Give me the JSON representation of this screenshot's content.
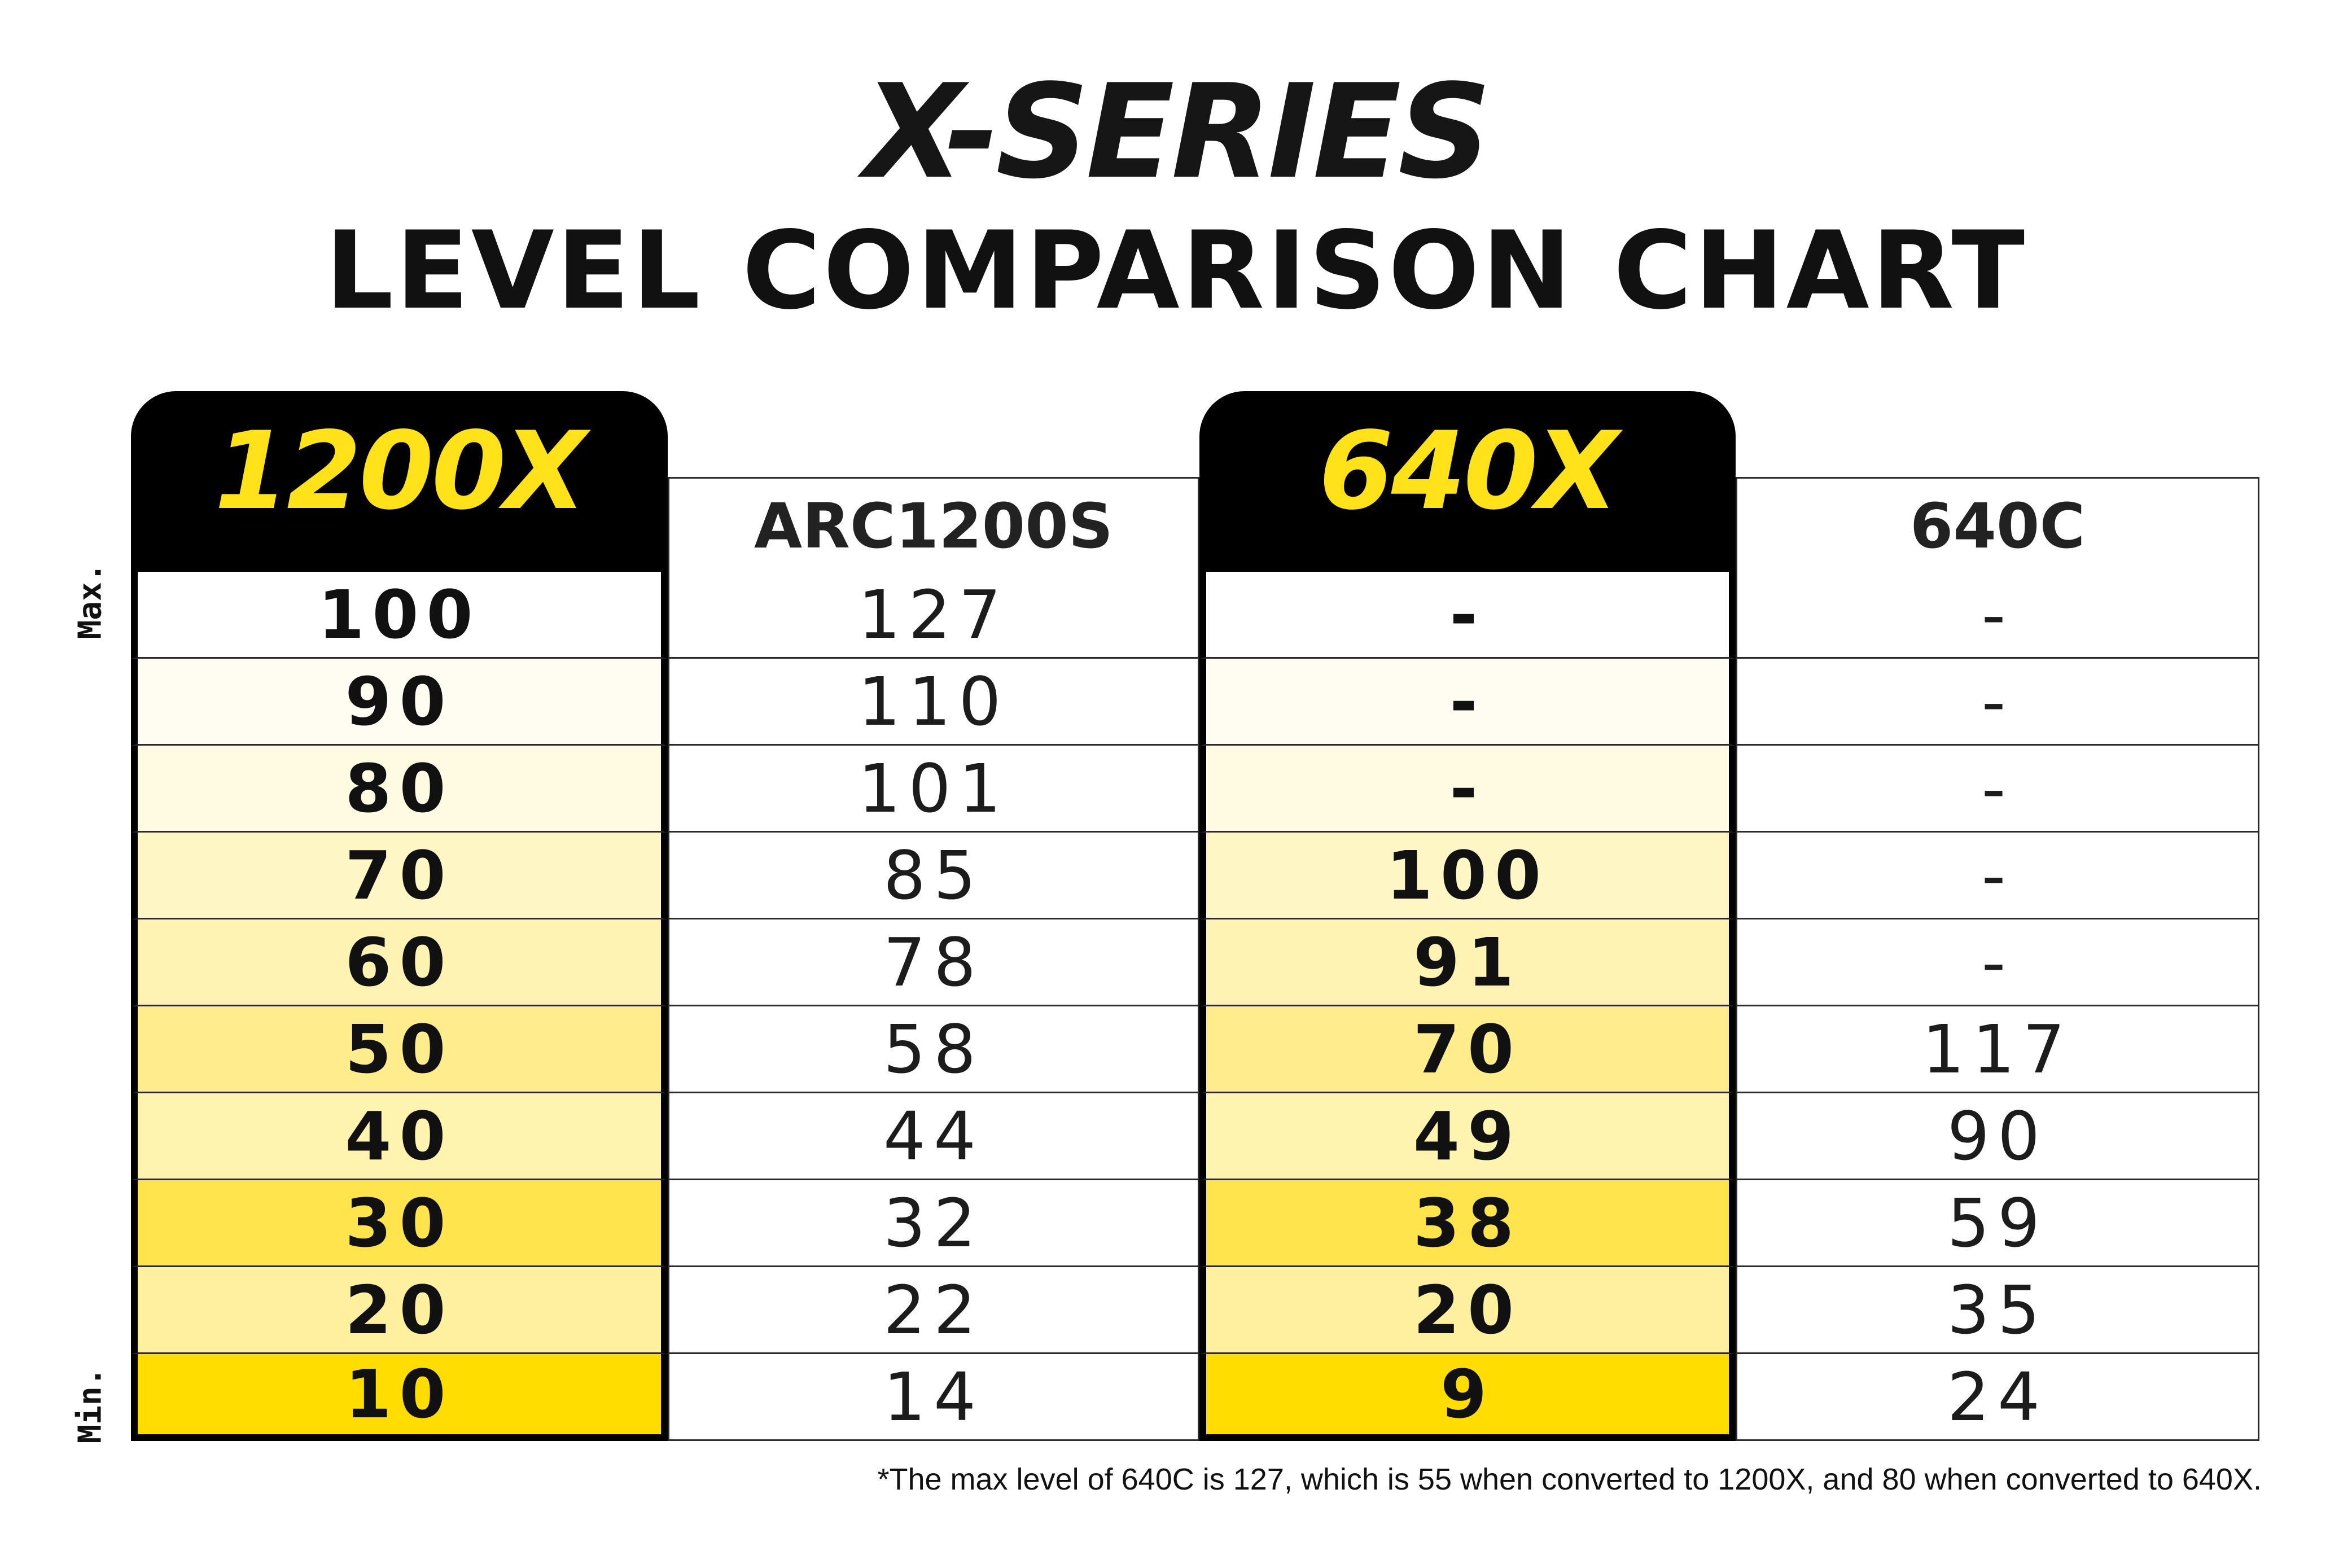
{
  "chart_data": {
    "type": "table",
    "brand": "X-SERIES",
    "title": "LEVEL COMPARISON CHART",
    "side_labels": {
      "max": "Max.",
      "min": "Min."
    },
    "columns": [
      {
        "name": "1200X",
        "highlight": true,
        "values": [
          "100",
          "90",
          "80",
          "70",
          "60",
          "50",
          "40",
          "30",
          "20",
          "10"
        ]
      },
      {
        "name": "ARC1200S",
        "highlight": false,
        "values": [
          "127",
          "110",
          "101",
          "85",
          "78",
          "58",
          "44",
          "32",
          "22",
          "14"
        ]
      },
      {
        "name": "640X",
        "highlight": true,
        "values": [
          "-",
          "-",
          "-",
          "100",
          "91",
          "70",
          "49",
          "38",
          "20",
          "9"
        ]
      },
      {
        "name": "640C",
        "highlight": false,
        "values": [
          "-",
          "-",
          "-",
          "-",
          "-",
          "117",
          "90",
          "59",
          "35",
          "24"
        ]
      }
    ],
    "row_fill_colors": [
      "#ffffff",
      "#fffdf2",
      "#fffbe2",
      "#fff6c6",
      "#fff3b4",
      "#ffec8c",
      "#fff3b0",
      "#ffe44e",
      "#fff0a0",
      "#ffdd00"
    ],
    "footnote": "*The max level of 640C is 127, which is 55 when converted to 1200X, and 80 when converted to 640X.",
    "colors": {
      "accent": "#ffe21a",
      "header_dark": "#000000",
      "text": "#111111"
    }
  }
}
